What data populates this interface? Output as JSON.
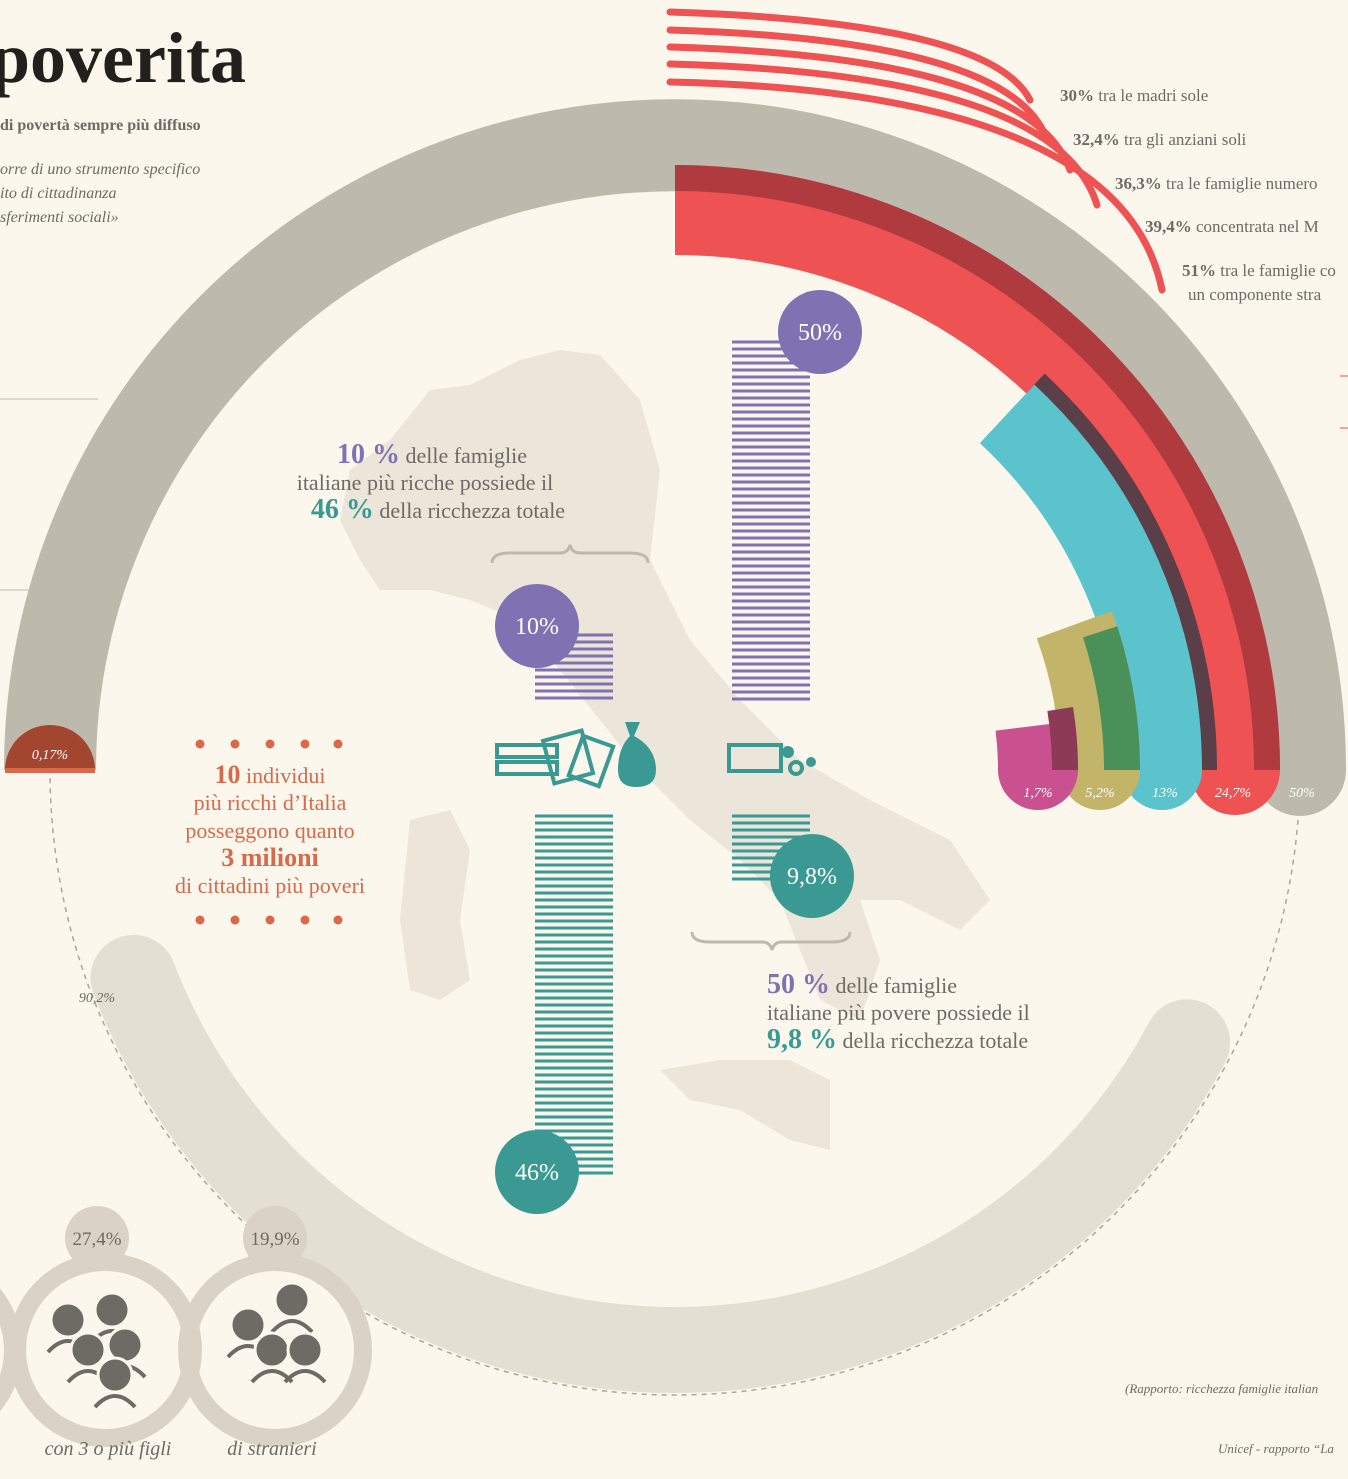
{
  "header": {
    "title": "poverita",
    "subtitle": "di povertà sempre più diffuso",
    "quote": [
      "orre di uno strumento specifico",
      "ito di cittadinanza",
      "sferimenti sociali»"
    ]
  },
  "red_list": [
    {
      "value": "30%",
      "text": "tra le madri sole"
    },
    {
      "value": "32,4%",
      "text": "tra gli anziani soli"
    },
    {
      "value": "36,3%",
      "text": "tra le famiglie numero"
    },
    {
      "value": "39,4%",
      "text": "concentrata nel M"
    },
    {
      "value": "51%",
      "text": "tra le famiglie co",
      "text2": "un componente stra"
    }
  ],
  "arc_labels": [
    "1,7%",
    "5,2%",
    "13%",
    "24,7%",
    "50%"
  ],
  "left_labels": {
    "small": "0,17%",
    "lower": "90,2%"
  },
  "rich": {
    "pct": "10 %",
    "t1": "delle famiglie",
    "t2": "italiane più ricche possiede il",
    "pct2": "46 %",
    "t3": "della ricchezza totale"
  },
  "poor": {
    "pct": "50 %",
    "t1": "delle famiglie",
    "t2": "italiane più povere possiede il",
    "pct2": "9,8 %",
    "t3": "della ricchezza totale"
  },
  "bubbles": {
    "poor_families": "50%",
    "rich_families": "10%",
    "poor_wealth": "9,8%",
    "rich_wealth": "46%"
  },
  "individuals": {
    "n": "10",
    "t1": "individui",
    "t2": "più ricchi d’Italia",
    "t3": "posseggono quanto",
    "big": "3 milioni",
    "t4": "di cittadini più poveri"
  },
  "bottom": [
    {
      "value": "27,4%",
      "caption": "con 3 o più figli"
    },
    {
      "value": "19,9%",
      "caption": "di stranieri"
    }
  ],
  "sources": [
    "(Rapporto: ricchezza famiglie italian",
    "Unicef - rapporto “La"
  ]
}
